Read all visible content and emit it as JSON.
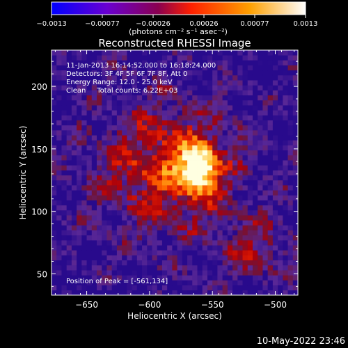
{
  "colorbar": {
    "ticks": [
      "-0.0013",
      "-0.00077",
      "-0.00026",
      "0.00026",
      "0.00077",
      "0.0013"
    ],
    "unit_label": "(photons cm⁻² s⁻¹ asec⁻²)",
    "colors": [
      "#0000ff",
      "#7a00c8",
      "#b80020",
      "#ff3000",
      "#ffa000",
      "#ffffff"
    ]
  },
  "chart_data": {
    "type": "heatmap",
    "title": "Reconstructed RHESSI Image",
    "xlabel": "Heliocentric X (arcsec)",
    "ylabel": "Heliocentric Y (arcsec)",
    "xlim": [
      -678,
      -482
    ],
    "ylim": [
      33,
      229
    ],
    "x_ticks": [
      -650,
      -600,
      -550,
      -500
    ],
    "y_ticks": [
      50,
      100,
      150,
      200
    ],
    "x_tick_labels": [
      "−650",
      "−600",
      "−550",
      "−500"
    ],
    "y_tick_labels": [
      "50",
      "100",
      "150",
      "200"
    ],
    "annotations": [
      "11-Jan-2013 16:14:52.000 to 16:18:24.000",
      "Detectors: 3F 4F 5F 6F 7F 8F, Att 0",
      "Energy Range: 12.0 - 25.0 keV",
      "Clean     Total counts: 6.22E+03"
    ],
    "peak_label": "Position of Peak = [-561,134]",
    "peak": [
      -561,
      134
    ],
    "grid": false
  },
  "footer": {
    "timestamp": "10-May-2022 23:46"
  }
}
